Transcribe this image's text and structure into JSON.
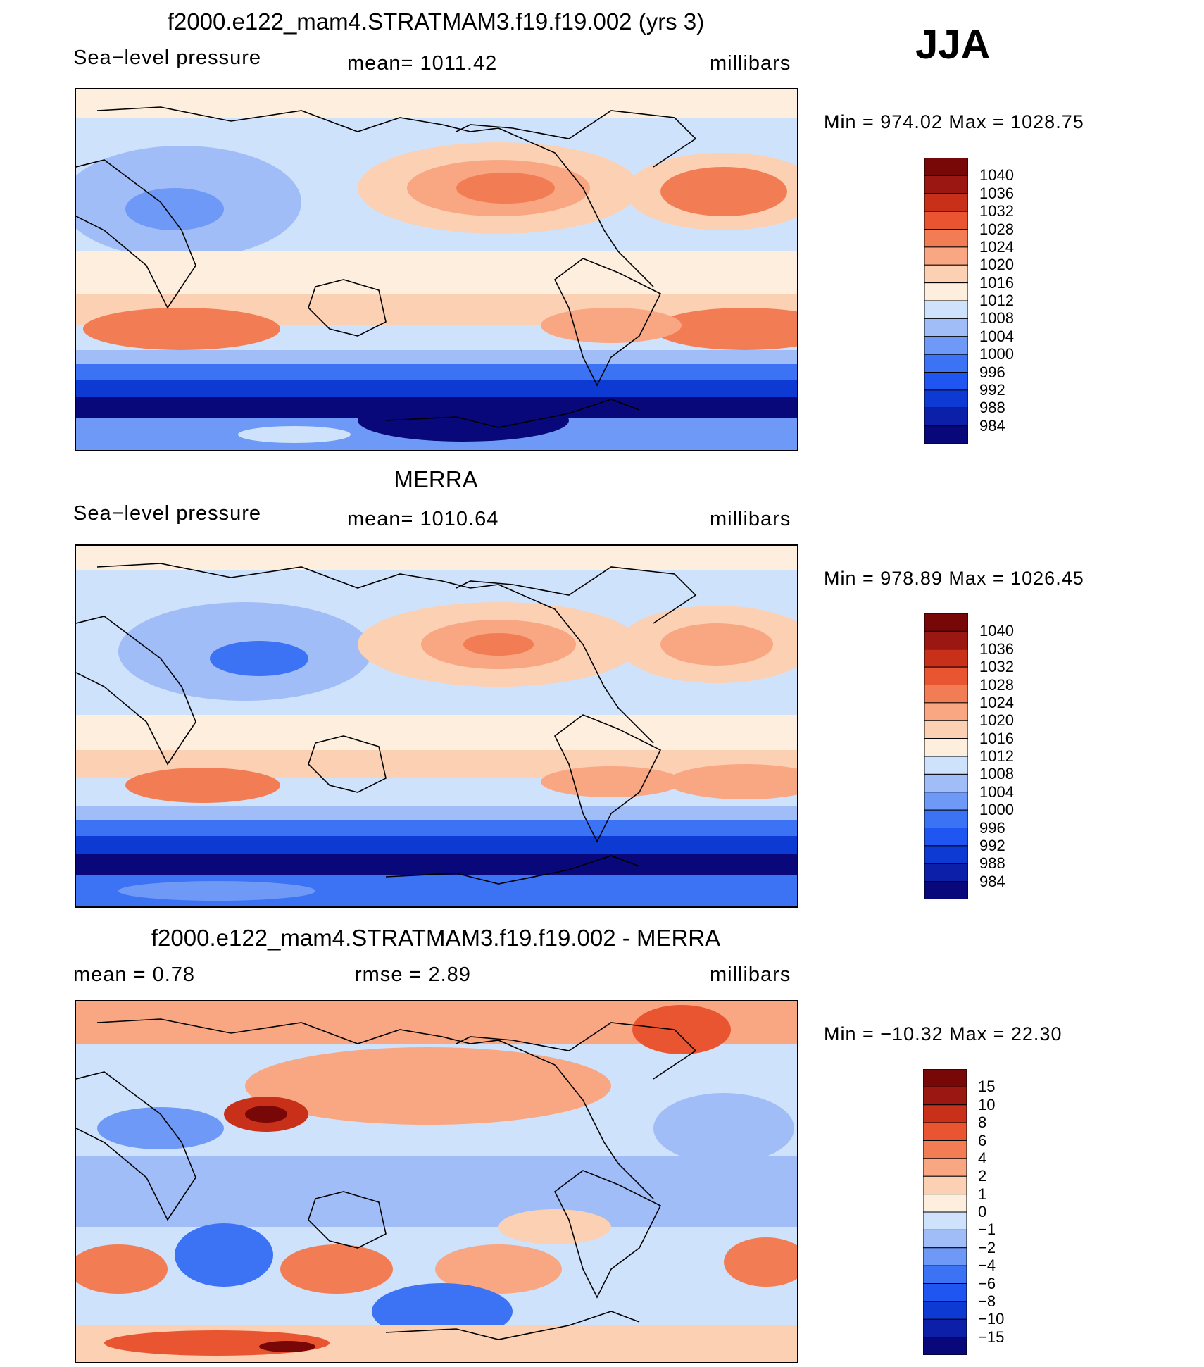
{
  "season": "JJA",
  "colors": {
    "absolute": [
      "#08087a",
      "#0b1fa8",
      "#0e3ad4",
      "#1f55f0",
      "#3c72f4",
      "#6f99f6",
      "#a0bdf8",
      "#cfe2fb",
      "#fdeedd",
      "#fcd0b3",
      "#f9a683",
      "#f27d55",
      "#e85530",
      "#c9301a",
      "#9b1812",
      "#780808"
    ],
    "difference": [
      "#08087a",
      "#0b1fa8",
      "#0e3ad4",
      "#1f55f0",
      "#3c72f4",
      "#6f99f6",
      "#a0bdf8",
      "#cfe2fb",
      "#fdeedd",
      "#fcd0b3",
      "#f9a683",
      "#f27d55",
      "#e85530",
      "#c9301a",
      "#9b1812",
      "#780808"
    ]
  },
  "panels": [
    {
      "id": "model",
      "title": "f2000.e122_mam4.STRATMAM3.f19.f19.002 (yrs 3)",
      "left_label": "Sea−level pressure",
      "center_label": "mean=  1011.42",
      "right_label": "millibars",
      "minmax": "Min  =  974.02  Max  =  1028.75",
      "colorbar_labels": [
        "1040",
        "1036",
        "1032",
        "1028",
        "1024",
        "1020",
        "1016",
        "1012",
        "1008",
        "1004",
        "1000",
        "996",
        "992",
        "988",
        "984"
      ]
    },
    {
      "id": "obs",
      "title": "MERRA",
      "left_label": "Sea−level pressure",
      "center_label": "mean=  1010.64",
      "right_label": "millibars",
      "minmax": "Min  =  978.89  Max  =  1026.45",
      "colorbar_labels": [
        "1040",
        "1036",
        "1032",
        "1028",
        "1024",
        "1020",
        "1016",
        "1012",
        "1008",
        "1004",
        "1000",
        "996",
        "992",
        "988",
        "984"
      ]
    },
    {
      "id": "diff",
      "title": "f2000.e122_mam4.STRATMAM3.f19.f19.002 - MERRA",
      "left_label": "mean  =      0.78",
      "center_label": "rmse  =      2.89",
      "right_label": "millibars",
      "minmax": "Min  =  −10.32  Max  =     22.30",
      "colorbar_labels": [
        "15",
        "10",
        "8",
        "6",
        "4",
        "2",
        "1",
        "0",
        "−1",
        "−2",
        "−4",
        "−6",
        "−8",
        "−10",
        "−15"
      ]
    }
  ],
  "chart_data": [
    {
      "type": "heatmap",
      "title": "f2000.e122_mam4.STRATMAM3.f19.f19.002 (yrs 3)",
      "variable": "Sea-level pressure",
      "units": "millibars",
      "mean": 1011.42,
      "min": 974.02,
      "max": 1028.75,
      "contour_levels": [
        984,
        988,
        992,
        996,
        1000,
        1004,
        1008,
        1012,
        1016,
        1020,
        1024,
        1028,
        1032,
        1036,
        1040
      ]
    },
    {
      "type": "heatmap",
      "title": "MERRA",
      "variable": "Sea-level pressure",
      "units": "millibars",
      "mean": 1010.64,
      "min": 978.89,
      "max": 1026.45,
      "contour_levels": [
        984,
        988,
        992,
        996,
        1000,
        1004,
        1008,
        1012,
        1016,
        1020,
        1024,
        1028,
        1032,
        1036,
        1040
      ]
    },
    {
      "type": "heatmap",
      "title": "f2000.e122_mam4.STRATMAM3.f19.f19.002 - MERRA",
      "variable": "Sea-level pressure difference",
      "units": "millibars",
      "mean": 0.78,
      "rmse": 2.89,
      "min": -10.32,
      "max": 22.3,
      "contour_levels": [
        -15,
        -10,
        -8,
        -6,
        -4,
        -2,
        -1,
        0,
        1,
        2,
        4,
        6,
        8,
        10,
        15
      ]
    }
  ]
}
